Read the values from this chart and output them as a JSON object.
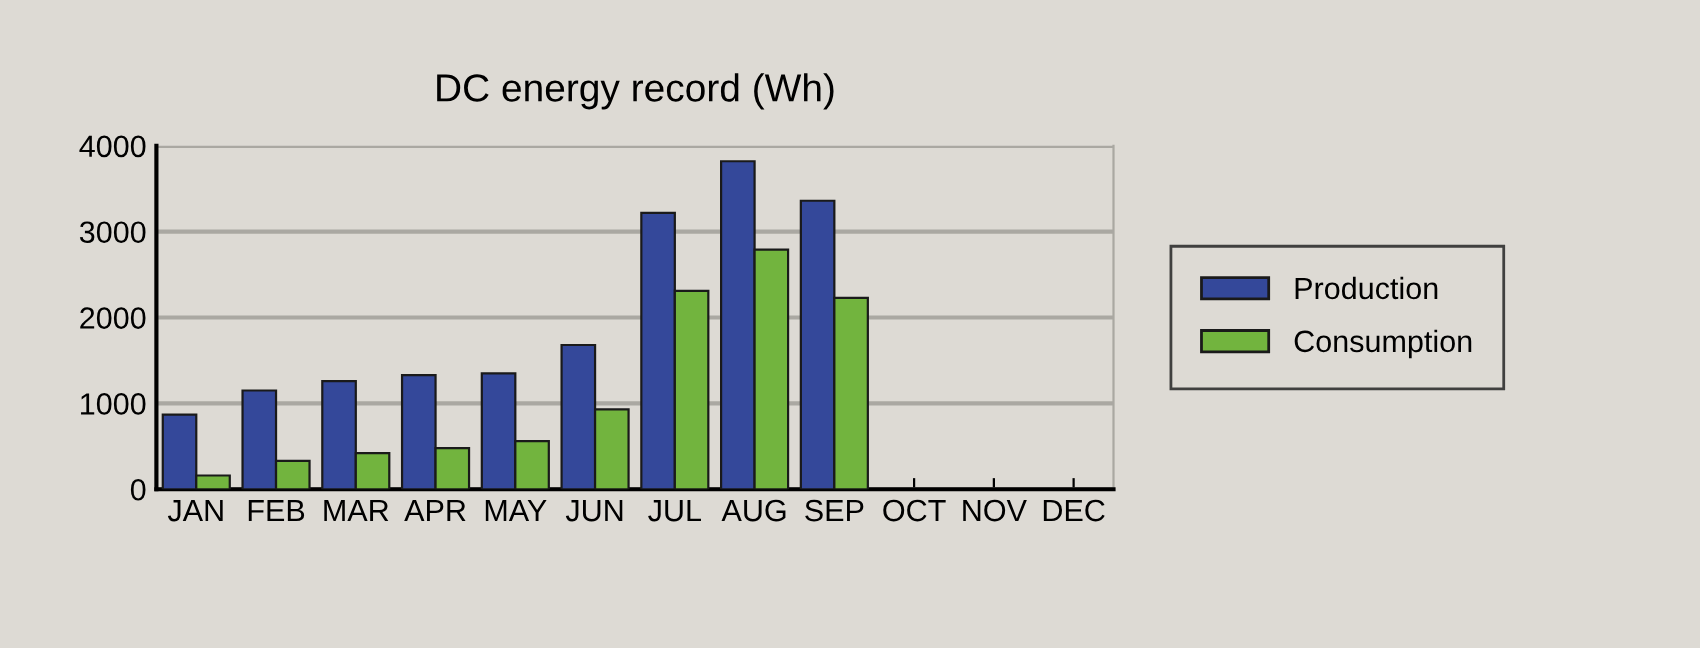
{
  "chart_data": {
    "type": "bar",
    "title": "DC energy record (Wh)",
    "categories": [
      "JAN",
      "FEB",
      "MAR",
      "APR",
      "MAY",
      "JUN",
      "JUL",
      "AUG",
      "SEP",
      "OCT",
      "NOV",
      "DEC"
    ],
    "series": [
      {
        "name": "Production",
        "color": "#34489a",
        "values": [
          870,
          1150,
          1260,
          1330,
          1350,
          1680,
          3220,
          3820,
          3360,
          null,
          null,
          null
        ]
      },
      {
        "name": "Consumption",
        "color": "#72b43e",
        "values": [
          160,
          330,
          420,
          480,
          560,
          930,
          2310,
          2790,
          2230,
          null,
          null,
          null
        ]
      }
    ],
    "ylim": [
      0,
      4000
    ],
    "yticks": [
      0,
      1000,
      2000,
      3000,
      4000
    ],
    "grid": "y",
    "legend": "right"
  }
}
